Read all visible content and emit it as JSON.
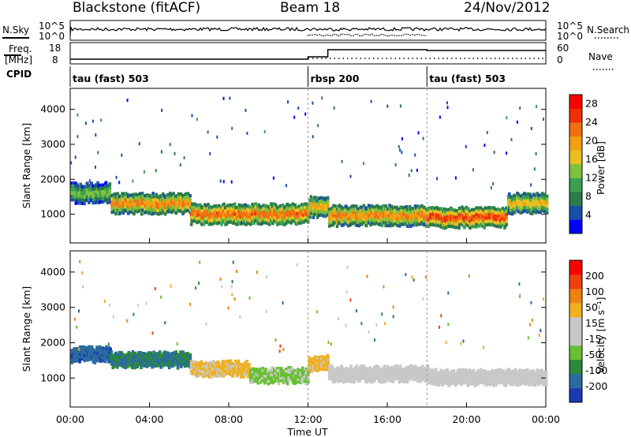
{
  "header": {
    "station": "Blackstone (fitACF)",
    "beam": "Beam 18",
    "date": "24/Nov/2012"
  },
  "side_labels": {
    "nsky": "N.Sky",
    "nsearch": "N.Search",
    "freq": "Freq.",
    "freq_unit": "[MHz]",
    "nave": "Nave",
    "cpid": "CPID"
  },
  "noise_axis": {
    "left_top": "10^5",
    "left_bottom": "10^0",
    "right_top": "10^5",
    "right_bottom": "10^0"
  },
  "freq_axis": {
    "left_top": "18",
    "left_bottom": "8",
    "right_top": "60",
    "right_bottom": "0"
  },
  "cpid_modes": [
    {
      "label": "tau (fast) 503",
      "start_hour": 0
    },
    {
      "label": "rbsp 200",
      "start_hour": 12
    },
    {
      "label": "tau (fast) 503",
      "start_hour": 18
    }
  ],
  "colors": {
    "power_scale": [
      "#0000ff",
      "#1a50a8",
      "#2a7a4a",
      "#3aa050",
      "#7cc23c",
      "#e8c020",
      "#f0a010",
      "#f07010",
      "#f03008",
      "#ff0000"
    ],
    "velocity_scale": [
      "#1a3ab0",
      "#2a6aa0",
      "#2a8a3a",
      "#66c030",
      "#c8c8c8",
      "#c8c8c8",
      "#f0b020",
      "#f08010",
      "#f04010",
      "#ff0000"
    ]
  },
  "chart_data": [
    {
      "type": "heatmap",
      "title": "",
      "xlabel": "Time UT",
      "ylabel": "Slant Range [km]",
      "xlim": [
        0,
        24
      ],
      "ylim": [
        180,
        4600
      ],
      "x_ticks": [
        "00:00",
        "04:00",
        "08:00",
        "12:00",
        "16:00",
        "20:00",
        "00:00"
      ],
      "y_ticks": [
        1000,
        2000,
        3000,
        4000
      ],
      "colorbar": {
        "label": "Power [dB]",
        "ticks": [
          4,
          8,
          12,
          16,
          20,
          24,
          28
        ],
        "range": [
          0,
          30
        ]
      },
      "echo_bands": [
        {
          "t0": 0.0,
          "t1": 2.0,
          "range_center": 1650,
          "value": 14
        },
        {
          "t0": 2.0,
          "t1": 6.0,
          "range_center": 1350,
          "value": 24
        },
        {
          "t0": 6.0,
          "t1": 12.0,
          "range_center": 1050,
          "value": 26
        },
        {
          "t0": 12.0,
          "t1": 13.0,
          "range_center": 1250,
          "value": 22
        },
        {
          "t0": 13.0,
          "t1": 18.0,
          "range_center": 1000,
          "value": 24
        },
        {
          "t0": 18.0,
          "t1": 22.0,
          "range_center": 950,
          "value": 28
        },
        {
          "t0": 22.0,
          "t1": 24.0,
          "range_center": 1350,
          "value": 20
        }
      ]
    },
    {
      "type": "heatmap",
      "title": "",
      "xlabel": "Time UT",
      "ylabel": "Slant Range [km]",
      "xlim": [
        0,
        24
      ],
      "ylim": [
        180,
        4600
      ],
      "x_ticks": [
        "00:00",
        "04:00",
        "08:00",
        "12:00",
        "16:00",
        "20:00",
        "00:00"
      ],
      "y_ticks": [
        1000,
        2000,
        3000,
        4000
      ],
      "colorbar": {
        "label": "Velocity [m s⁻¹]",
        "ticks": [
          200,
          100,
          50,
          15,
          -15,
          -50,
          -100,
          -200
        ],
        "range": [
          -250,
          250
        ]
      },
      "echo_bands": [
        {
          "t0": 0.0,
          "t1": 2.0,
          "range_center": 1700,
          "value": -180
        },
        {
          "t0": 2.0,
          "t1": 6.0,
          "range_center": 1550,
          "value": -150
        },
        {
          "t0": 6.0,
          "t1": 9.0,
          "range_center": 1300,
          "value": 60
        },
        {
          "t0": 9.0,
          "t1": 12.0,
          "range_center": 1100,
          "value": -60
        },
        {
          "t0": 12.0,
          "t1": 13.0,
          "range_center": 1450,
          "value": 70
        },
        {
          "t0": 13.0,
          "t1": 18.0,
          "range_center": 1150,
          "value": 0
        },
        {
          "t0": 18.0,
          "t1": 24.0,
          "range_center": 1050,
          "value": 0
        }
      ]
    }
  ]
}
